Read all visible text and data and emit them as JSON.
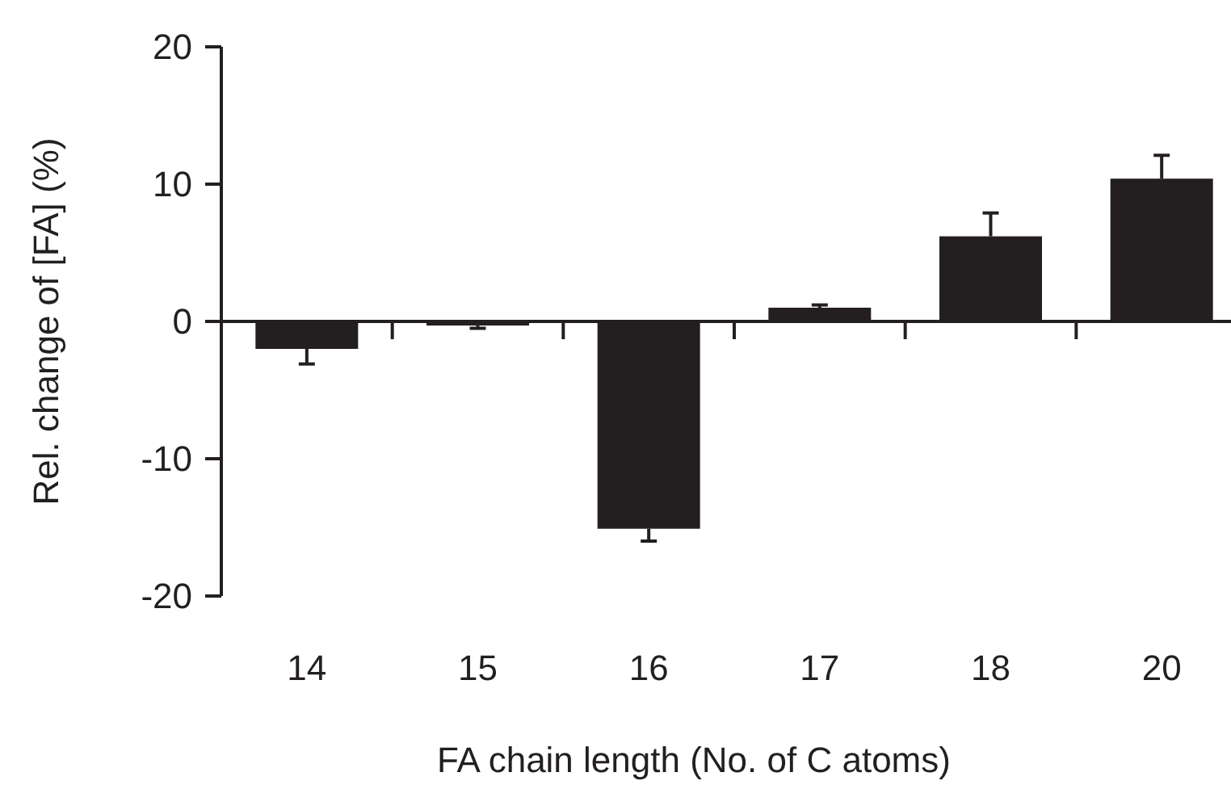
{
  "chart_data": {
    "type": "bar",
    "xlabel": "FA chain length (No. of C atoms)",
    "ylabel": "Rel. change of [FA] (%)",
    "categories": [
      "14",
      "15",
      "16",
      "17",
      "18",
      "20"
    ],
    "values": [
      -2.0,
      -0.3,
      -15.1,
      1.0,
      6.2,
      10.4
    ],
    "errors": [
      [
        -3.1,
        -2.0
      ],
      [
        -0.5,
        -0.3
      ],
      [
        -16.0,
        -15.1
      ],
      [
        1.0,
        1.2
      ],
      [
        6.2,
        7.9
      ],
      [
        10.4,
        12.1
      ]
    ],
    "color": "#231f20",
    "ylim": [
      -20,
      20
    ],
    "yticks": [
      -20,
      -10,
      0,
      10,
      20
    ]
  }
}
